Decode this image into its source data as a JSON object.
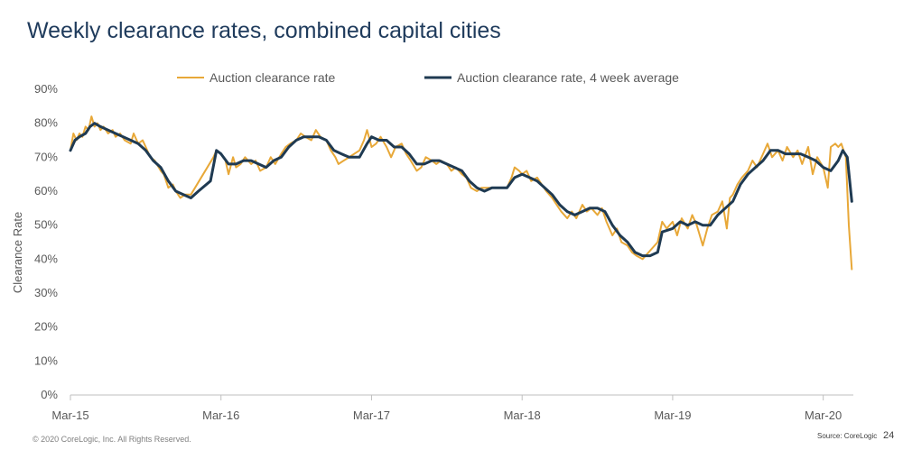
{
  "footer": {
    "copyright": "© 2020 CoreLogic, Inc. All Rights Reserved.",
    "source": "Source: CoreLogic",
    "page_number": "24"
  },
  "colors": {
    "weekly": "#e8a838",
    "average": "#1f3a52",
    "title": "#1f3b5c"
  },
  "chart_data": {
    "type": "line",
    "title": "Weekly clearance rates, combined capital cities",
    "xlabel": "",
    "ylabel": "Clearance Rate",
    "ylim": [
      0,
      0.9
    ],
    "yticks": [
      0,
      0.1,
      0.2,
      0.3,
      0.4,
      0.5,
      0.6,
      0.7,
      0.8,
      0.9
    ],
    "ytick_labels": [
      "0%",
      "10%",
      "20%",
      "30%",
      "40%",
      "50%",
      "60%",
      "70%",
      "80%",
      "90%"
    ],
    "xlim": [
      2015.0,
      2020.2
    ],
    "xticks": [
      2015.0,
      2016.0,
      2017.0,
      2018.0,
      2019.0,
      2020.0
    ],
    "xtick_labels": [
      "Mar-15",
      "Mar-16",
      "Mar-17",
      "Mar-18",
      "Mar-19",
      "Mar-20"
    ],
    "legend_position": "top",
    "series": [
      {
        "name": "Auction clearance rate",
        "values": [
          [
            2015.0,
            0.72
          ],
          [
            2015.02,
            0.77
          ],
          [
            2015.04,
            0.75
          ],
          [
            2015.06,
            0.77
          ],
          [
            2015.08,
            0.76
          ],
          [
            2015.1,
            0.79
          ],
          [
            2015.12,
            0.78
          ],
          [
            2015.14,
            0.82
          ],
          [
            2015.16,
            0.79
          ],
          [
            2015.18,
            0.8
          ],
          [
            2015.2,
            0.78
          ],
          [
            2015.22,
            0.79
          ],
          [
            2015.25,
            0.77
          ],
          [
            2015.28,
            0.78
          ],
          [
            2015.3,
            0.76
          ],
          [
            2015.33,
            0.77
          ],
          [
            2015.36,
            0.75
          ],
          [
            2015.4,
            0.74
          ],
          [
            2015.42,
            0.77
          ],
          [
            2015.45,
            0.74
          ],
          [
            2015.48,
            0.75
          ],
          [
            2015.5,
            0.73
          ],
          [
            2015.53,
            0.7
          ],
          [
            2015.56,
            0.69
          ],
          [
            2015.6,
            0.66
          ],
          [
            2015.62,
            0.65
          ],
          [
            2015.65,
            0.61
          ],
          [
            2015.68,
            0.62
          ],
          [
            2015.7,
            0.6
          ],
          [
            2015.73,
            0.58
          ],
          [
            2015.76,
            0.59
          ],
          [
            2015.8,
            0.59
          ],
          [
            2015.95,
            0.7
          ],
          [
            2015.97,
            0.72
          ],
          [
            2016.0,
            0.71
          ],
          [
            2016.03,
            0.69
          ],
          [
            2016.05,
            0.65
          ],
          [
            2016.08,
            0.7
          ],
          [
            2016.1,
            0.67
          ],
          [
            2016.13,
            0.68
          ],
          [
            2016.16,
            0.7
          ],
          [
            2016.2,
            0.68
          ],
          [
            2016.23,
            0.69
          ],
          [
            2016.26,
            0.66
          ],
          [
            2016.3,
            0.67
          ],
          [
            2016.33,
            0.7
          ],
          [
            2016.36,
            0.68
          ],
          [
            2016.4,
            0.71
          ],
          [
            2016.43,
            0.73
          ],
          [
            2016.46,
            0.74
          ],
          [
            2016.5,
            0.75
          ],
          [
            2016.53,
            0.77
          ],
          [
            2016.56,
            0.76
          ],
          [
            2016.6,
            0.75
          ],
          [
            2016.63,
            0.78
          ],
          [
            2016.66,
            0.76
          ],
          [
            2016.7,
            0.75
          ],
          [
            2016.73,
            0.72
          ],
          [
            2016.76,
            0.7
          ],
          [
            2016.78,
            0.68
          ],
          [
            2016.92,
            0.72
          ],
          [
            2016.95,
            0.75
          ],
          [
            2016.97,
            0.78
          ],
          [
            2017.0,
            0.73
          ],
          [
            2017.03,
            0.74
          ],
          [
            2017.06,
            0.76
          ],
          [
            2017.1,
            0.73
          ],
          [
            2017.13,
            0.7
          ],
          [
            2017.16,
            0.73
          ],
          [
            2017.2,
            0.74
          ],
          [
            2017.23,
            0.71
          ],
          [
            2017.26,
            0.69
          ],
          [
            2017.3,
            0.66
          ],
          [
            2017.33,
            0.67
          ],
          [
            2017.36,
            0.7
          ],
          [
            2017.4,
            0.69
          ],
          [
            2017.43,
            0.68
          ],
          [
            2017.46,
            0.69
          ],
          [
            2017.5,
            0.68
          ],
          [
            2017.53,
            0.66
          ],
          [
            2017.56,
            0.67
          ],
          [
            2017.6,
            0.65
          ],
          [
            2017.63,
            0.64
          ],
          [
            2017.66,
            0.61
          ],
          [
            2017.7,
            0.6
          ],
          [
            2017.73,
            0.61
          ],
          [
            2017.9,
            0.61
          ],
          [
            2017.93,
            0.64
          ],
          [
            2017.95,
            0.67
          ],
          [
            2017.98,
            0.66
          ],
          [
            2018.0,
            0.65
          ],
          [
            2018.03,
            0.66
          ],
          [
            2018.06,
            0.63
          ],
          [
            2018.1,
            0.64
          ],
          [
            2018.13,
            0.62
          ],
          [
            2018.16,
            0.6
          ],
          [
            2018.2,
            0.58
          ],
          [
            2018.23,
            0.56
          ],
          [
            2018.26,
            0.54
          ],
          [
            2018.3,
            0.52
          ],
          [
            2018.33,
            0.54
          ],
          [
            2018.36,
            0.52
          ],
          [
            2018.4,
            0.56
          ],
          [
            2018.43,
            0.54
          ],
          [
            2018.46,
            0.55
          ],
          [
            2018.5,
            0.53
          ],
          [
            2018.53,
            0.55
          ],
          [
            2018.56,
            0.51
          ],
          [
            2018.6,
            0.47
          ],
          [
            2018.63,
            0.49
          ],
          [
            2018.66,
            0.45
          ],
          [
            2018.7,
            0.44
          ],
          [
            2018.73,
            0.42
          ],
          [
            2018.76,
            0.41
          ],
          [
            2018.8,
            0.4
          ],
          [
            2018.9,
            0.45
          ],
          [
            2018.93,
            0.51
          ],
          [
            2018.96,
            0.49
          ],
          [
            2019.0,
            0.51
          ],
          [
            2019.03,
            0.47
          ],
          [
            2019.06,
            0.52
          ],
          [
            2019.1,
            0.49
          ],
          [
            2019.13,
            0.53
          ],
          [
            2019.16,
            0.5
          ],
          [
            2019.2,
            0.44
          ],
          [
            2019.23,
            0.49
          ],
          [
            2019.26,
            0.53
          ],
          [
            2019.3,
            0.54
          ],
          [
            2019.33,
            0.57
          ],
          [
            2019.36,
            0.49
          ],
          [
            2019.38,
            0.58
          ],
          [
            2019.4,
            0.59
          ],
          [
            2019.43,
            0.62
          ],
          [
            2019.46,
            0.64
          ],
          [
            2019.5,
            0.66
          ],
          [
            2019.53,
            0.69
          ],
          [
            2019.56,
            0.67
          ],
          [
            2019.6,
            0.71
          ],
          [
            2019.63,
            0.74
          ],
          [
            2019.66,
            0.7
          ],
          [
            2019.7,
            0.72
          ],
          [
            2019.73,
            0.69
          ],
          [
            2019.76,
            0.73
          ],
          [
            2019.8,
            0.7
          ],
          [
            2019.83,
            0.72
          ],
          [
            2019.86,
            0.68
          ],
          [
            2019.9,
            0.73
          ],
          [
            2019.93,
            0.65
          ],
          [
            2019.96,
            0.7
          ],
          [
            2020.0,
            0.67
          ],
          [
            2020.03,
            0.61
          ],
          [
            2020.05,
            0.73
          ],
          [
            2020.08,
            0.74
          ],
          [
            2020.1,
            0.73
          ],
          [
            2020.12,
            0.74
          ],
          [
            2020.15,
            0.7
          ],
          [
            2020.17,
            0.5
          ],
          [
            2020.19,
            0.37
          ]
        ]
      },
      {
        "name": "Auction clearance rate, 4 week average",
        "values": [
          [
            2015.0,
            0.72
          ],
          [
            2015.03,
            0.75
          ],
          [
            2015.06,
            0.76
          ],
          [
            2015.1,
            0.77
          ],
          [
            2015.13,
            0.79
          ],
          [
            2015.16,
            0.8
          ],
          [
            2015.2,
            0.79
          ],
          [
            2015.25,
            0.78
          ],
          [
            2015.3,
            0.77
          ],
          [
            2015.35,
            0.76
          ],
          [
            2015.4,
            0.75
          ],
          [
            2015.45,
            0.74
          ],
          [
            2015.5,
            0.72
          ],
          [
            2015.55,
            0.69
          ],
          [
            2015.6,
            0.67
          ],
          [
            2015.65,
            0.63
          ],
          [
            2015.7,
            0.6
          ],
          [
            2015.75,
            0.59
          ],
          [
            2015.8,
            0.58
          ],
          [
            2015.85,
            0.6
          ],
          [
            2015.93,
            0.63
          ],
          [
            2015.97,
            0.72
          ],
          [
            2016.0,
            0.71
          ],
          [
            2016.05,
            0.68
          ],
          [
            2016.1,
            0.68
          ],
          [
            2016.15,
            0.69
          ],
          [
            2016.2,
            0.69
          ],
          [
            2016.25,
            0.68
          ],
          [
            2016.3,
            0.67
          ],
          [
            2016.35,
            0.69
          ],
          [
            2016.4,
            0.7
          ],
          [
            2016.45,
            0.73
          ],
          [
            2016.5,
            0.75
          ],
          [
            2016.55,
            0.76
          ],
          [
            2016.6,
            0.76
          ],
          [
            2016.65,
            0.76
          ],
          [
            2016.7,
            0.75
          ],
          [
            2016.75,
            0.72
          ],
          [
            2016.8,
            0.71
          ],
          [
            2016.85,
            0.7
          ],
          [
            2016.92,
            0.7
          ],
          [
            2016.97,
            0.74
          ],
          [
            2017.0,
            0.76
          ],
          [
            2017.05,
            0.75
          ],
          [
            2017.1,
            0.75
          ],
          [
            2017.15,
            0.73
          ],
          [
            2017.2,
            0.73
          ],
          [
            2017.25,
            0.71
          ],
          [
            2017.3,
            0.68
          ],
          [
            2017.35,
            0.68
          ],
          [
            2017.4,
            0.69
          ],
          [
            2017.45,
            0.69
          ],
          [
            2017.5,
            0.68
          ],
          [
            2017.55,
            0.67
          ],
          [
            2017.6,
            0.66
          ],
          [
            2017.65,
            0.63
          ],
          [
            2017.7,
            0.61
          ],
          [
            2017.75,
            0.6
          ],
          [
            2017.8,
            0.61
          ],
          [
            2017.9,
            0.61
          ],
          [
            2017.95,
            0.64
          ],
          [
            2018.0,
            0.65
          ],
          [
            2018.05,
            0.64
          ],
          [
            2018.1,
            0.63
          ],
          [
            2018.15,
            0.61
          ],
          [
            2018.2,
            0.59
          ],
          [
            2018.25,
            0.56
          ],
          [
            2018.3,
            0.54
          ],
          [
            2018.35,
            0.53
          ],
          [
            2018.4,
            0.54
          ],
          [
            2018.45,
            0.55
          ],
          [
            2018.5,
            0.55
          ],
          [
            2018.55,
            0.54
          ],
          [
            2018.6,
            0.5
          ],
          [
            2018.65,
            0.47
          ],
          [
            2018.7,
            0.45
          ],
          [
            2018.75,
            0.42
          ],
          [
            2018.8,
            0.41
          ],
          [
            2018.85,
            0.41
          ],
          [
            2018.9,
            0.42
          ],
          [
            2018.93,
            0.48
          ],
          [
            2019.0,
            0.49
          ],
          [
            2019.05,
            0.51
          ],
          [
            2019.1,
            0.5
          ],
          [
            2019.15,
            0.51
          ],
          [
            2019.2,
            0.5
          ],
          [
            2019.25,
            0.5
          ],
          [
            2019.3,
            0.53
          ],
          [
            2019.35,
            0.55
          ],
          [
            2019.4,
            0.57
          ],
          [
            2019.45,
            0.62
          ],
          [
            2019.5,
            0.65
          ],
          [
            2019.55,
            0.67
          ],
          [
            2019.6,
            0.69
          ],
          [
            2019.65,
            0.72
          ],
          [
            2019.7,
            0.72
          ],
          [
            2019.75,
            0.71
          ],
          [
            2019.8,
            0.71
          ],
          [
            2019.85,
            0.71
          ],
          [
            2019.9,
            0.7
          ],
          [
            2019.95,
            0.69
          ],
          [
            2020.0,
            0.67
          ],
          [
            2020.05,
            0.66
          ],
          [
            2020.1,
            0.69
          ],
          [
            2020.13,
            0.72
          ],
          [
            2020.16,
            0.7
          ],
          [
            2020.19,
            0.57
          ]
        ]
      }
    ]
  }
}
